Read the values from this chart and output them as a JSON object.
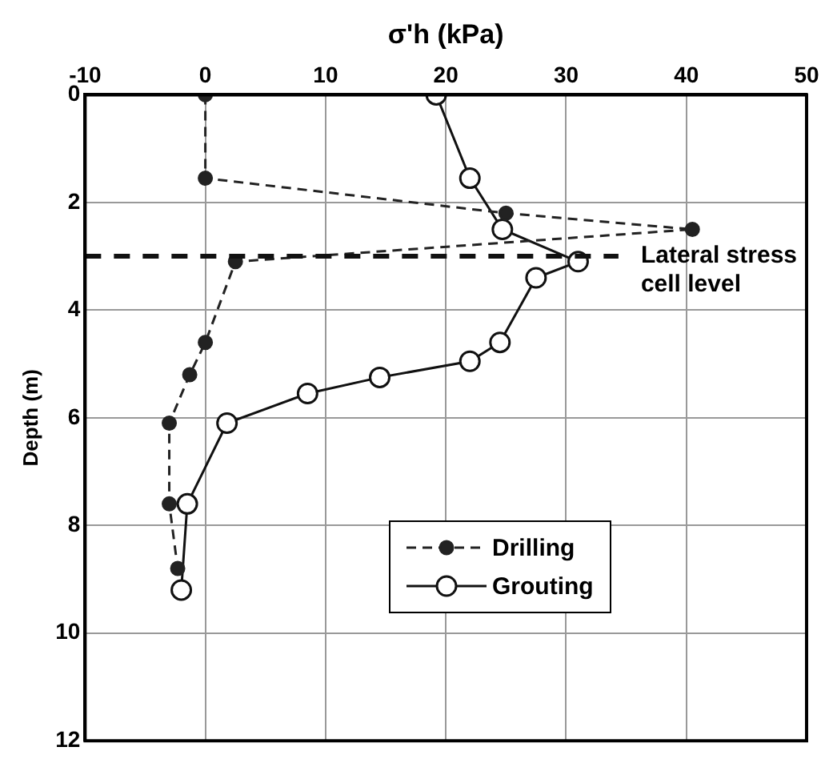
{
  "chart_data": {
    "type": "line",
    "xlabel": "σ'h (kPa)",
    "ylabel": "Depth (m)",
    "xlim": [
      -10,
      50
    ],
    "xticks": [
      -10,
      0,
      10,
      20,
      30,
      40,
      50
    ],
    "ylim": [
      12,
      0
    ],
    "yticks": [
      0,
      2,
      4,
      6,
      8,
      10,
      12
    ],
    "grid": true,
    "legend": "bottom",
    "marker": "circle",
    "series": [
      {
        "name": "Drilling",
        "color": "#222222",
        "line_style": "dashed",
        "x": [
          0,
          0,
          25,
          40.5,
          2.5,
          0,
          -1.3,
          -3,
          -3,
          -2.3
        ],
        "values": [
          0,
          1.55,
          2.2,
          2.5,
          3.1,
          4.6,
          5.2,
          6.1,
          7.6,
          8.8
        ]
      },
      {
        "name": "Grouting",
        "color": "#111111",
        "line_style": "solid",
        "x": [
          19.2,
          22,
          24.7,
          31,
          27.5,
          24.5,
          22,
          14.5,
          8.5,
          1.8,
          -1.5,
          -2
        ],
        "values": [
          0,
          1.55,
          2.5,
          3.1,
          3.4,
          4.6,
          4.95,
          5.25,
          5.55,
          6.1,
          7.6,
          9.2
        ]
      }
    ],
    "ref_lines": [
      {
        "axis": "y",
        "value": 3,
        "label": "Lateral stress cell level",
        "line_style": "dashed",
        "color": "#111111"
      }
    ]
  }
}
